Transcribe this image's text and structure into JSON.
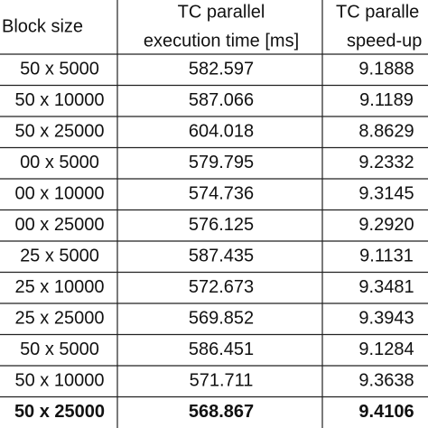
{
  "table": {
    "header": {
      "block_size": "Block size",
      "time": [
        "TC parallel",
        "execution time [ms]"
      ],
      "speedup": [
        "TC paralle",
        "speed-up"
      ]
    },
    "rows": [
      [
        "50 x 5000",
        "582.597",
        "9.1888"
      ],
      [
        "50 x 10000",
        "587.066",
        "9.1189"
      ],
      [
        "50 x 25000",
        "604.018",
        "8.8629"
      ],
      [
        "00 x 5000",
        "579.795",
        "9.2332"
      ],
      [
        "00 x 10000",
        "574.736",
        "9.3145"
      ],
      [
        "00 x 25000",
        "576.125",
        "9.2920"
      ],
      [
        "25 x 5000",
        "587.435",
        "9.1131"
      ],
      [
        "25 x 10000",
        "572.673",
        "9.3481"
      ],
      [
        "25 x 25000",
        "569.852",
        "9.3943"
      ],
      [
        "50 x 5000",
        "586.451",
        "9.1284"
      ],
      [
        "50 x 10000",
        "571.711",
        "9.3638"
      ],
      [
        "50 x 25000",
        "568.867",
        "9.4106"
      ]
    ]
  }
}
